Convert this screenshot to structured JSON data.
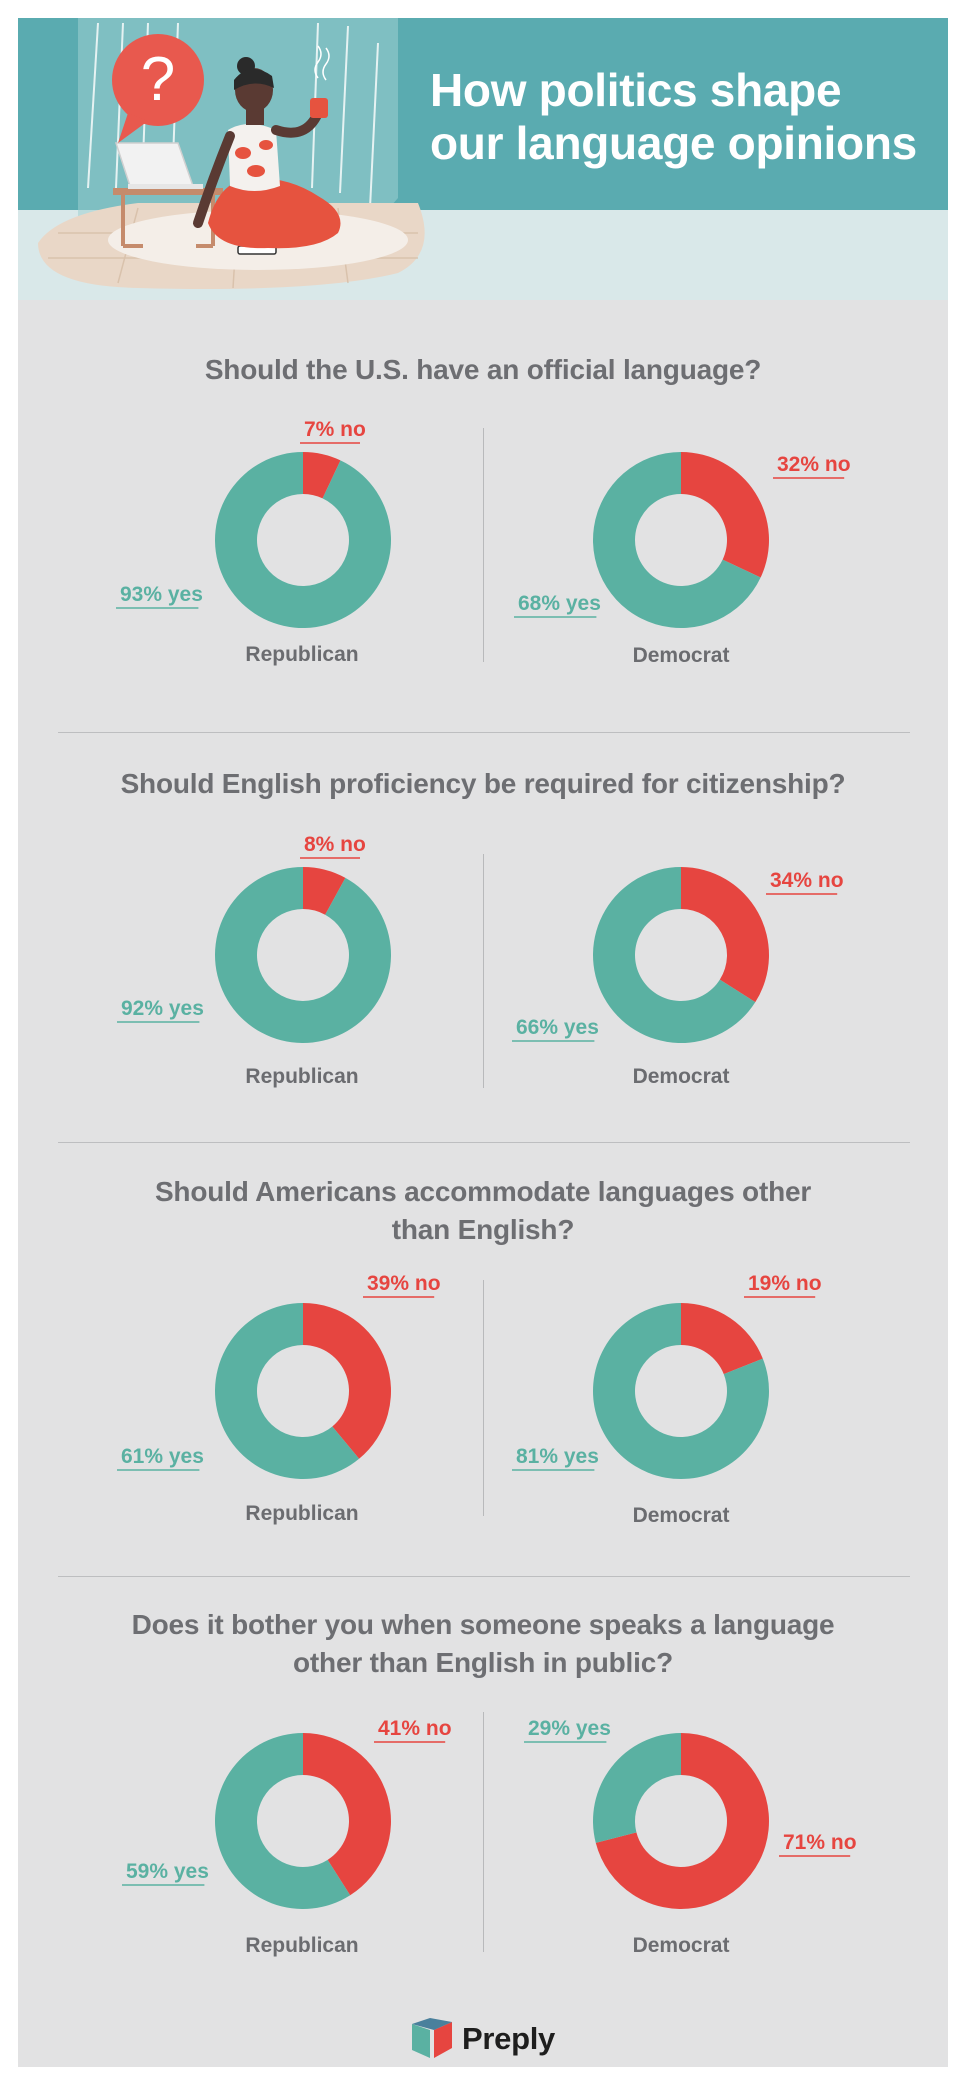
{
  "header": {
    "title": "How politics shape\nour language opinions",
    "illustration_icon": "question-bubble-icon"
  },
  "colors": {
    "yes": "#5ab1a2",
    "no": "#e64540",
    "background": "#e2e2e3",
    "header": "#5aabb0"
  },
  "sections": [
    {
      "question": "Should the U.S. have an official language?"
    },
    {
      "question": "Should English proficiency be required for citizenship?"
    },
    {
      "question": "Should Americans accommodate languages other\nthan English?"
    },
    {
      "question": "Does it bother you when someone speaks a language\nother than English in public?"
    }
  ],
  "chart_data": [
    {
      "type": "pie",
      "style": "donut",
      "section": 0,
      "title": "Republican",
      "slices": [
        {
          "label": "no",
          "value": 7,
          "text": "7% no"
        },
        {
          "label": "yes",
          "value": 93,
          "text": "93% yes"
        }
      ]
    },
    {
      "type": "pie",
      "style": "donut",
      "section": 0,
      "title": "Democrat",
      "slices": [
        {
          "label": "no",
          "value": 32,
          "text": "32% no"
        },
        {
          "label": "yes",
          "value": 68,
          "text": "68% yes"
        }
      ]
    },
    {
      "type": "pie",
      "style": "donut",
      "section": 1,
      "title": "Republican",
      "slices": [
        {
          "label": "no",
          "value": 8,
          "text": "8% no"
        },
        {
          "label": "yes",
          "value": 92,
          "text": "92% yes"
        }
      ]
    },
    {
      "type": "pie",
      "style": "donut",
      "section": 1,
      "title": "Democrat",
      "slices": [
        {
          "label": "no",
          "value": 34,
          "text": "34% no"
        },
        {
          "label": "yes",
          "value": 66,
          "text": "66% yes"
        }
      ]
    },
    {
      "type": "pie",
      "style": "donut",
      "section": 2,
      "title": "Republican",
      "slices": [
        {
          "label": "no",
          "value": 39,
          "text": "39% no"
        },
        {
          "label": "yes",
          "value": 61,
          "text": "61% yes"
        }
      ]
    },
    {
      "type": "pie",
      "style": "donut",
      "section": 2,
      "title": "Democrat",
      "slices": [
        {
          "label": "no",
          "value": 19,
          "text": "19% no"
        },
        {
          "label": "yes",
          "value": 81,
          "text": "81% yes"
        }
      ]
    },
    {
      "type": "pie",
      "style": "donut",
      "section": 3,
      "title": "Republican",
      "slices": [
        {
          "label": "no",
          "value": 41,
          "text": "41% no"
        },
        {
          "label": "yes",
          "value": 59,
          "text": "59% yes"
        }
      ]
    },
    {
      "type": "pie",
      "style": "donut",
      "section": 3,
      "title": "Democrat",
      "slices": [
        {
          "label": "no",
          "value": 71,
          "text": "71% no"
        },
        {
          "label": "yes",
          "value": 29,
          "text": "29% yes"
        }
      ]
    }
  ],
  "footer": {
    "logo_text": "Preply",
    "logo_icon": "preply-logo-icon"
  }
}
